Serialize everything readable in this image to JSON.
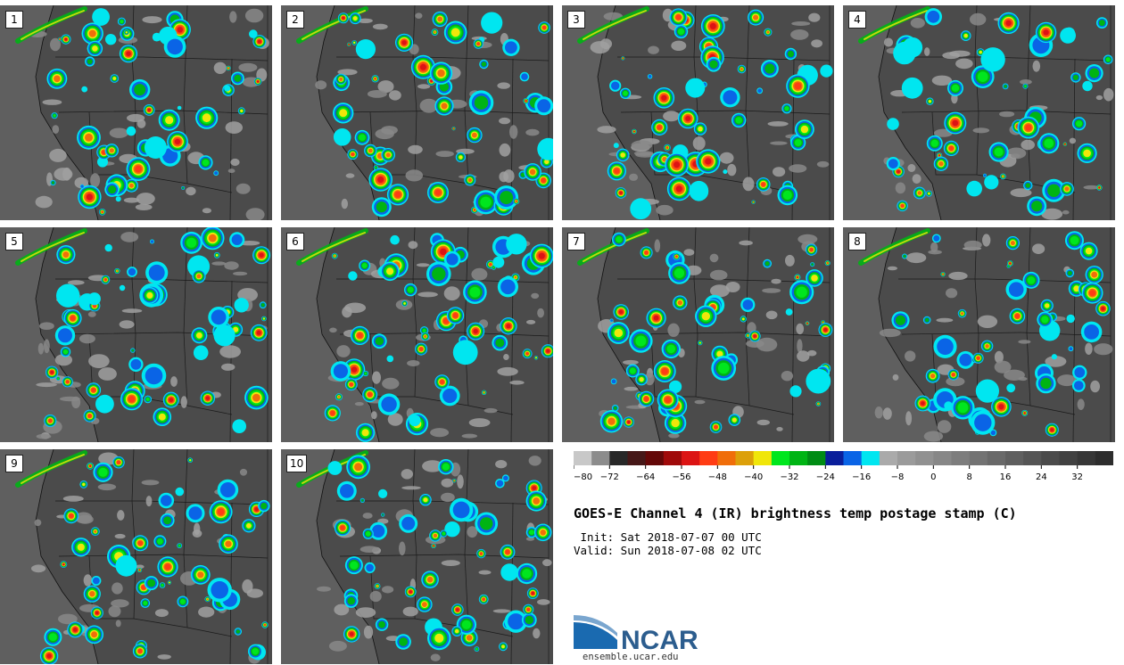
{
  "panels": [
    {
      "label": "1"
    },
    {
      "label": "2"
    },
    {
      "label": "3"
    },
    {
      "label": "4"
    },
    {
      "label": "5"
    },
    {
      "label": "6"
    },
    {
      "label": "7"
    },
    {
      "label": "8"
    },
    {
      "label": "9"
    },
    {
      "label": "10"
    }
  ],
  "colorbar": {
    "colors": [
      "#c8c8c8",
      "#8c8c8c",
      "#282828",
      "#461818",
      "#640808",
      "#a00a0a",
      "#dc1414",
      "#ff3c14",
      "#f06e0a",
      "#dca00a",
      "#f0e60a",
      "#00e61e",
      "#00b414",
      "#008c14",
      "#0a1e9b",
      "#0a64e6",
      "#00e6f0",
      "#aaaaaa",
      "#9b9b9b",
      "#919191",
      "#878787",
      "#7d7d7d",
      "#737373",
      "#696969",
      "#5f5f5f",
      "#555555",
      "#4b4b4b",
      "#414141",
      "#373737",
      "#2d2d2d"
    ],
    "tick_labels": [
      "−80",
      "−72",
      "−64",
      "−56",
      "−48",
      "−40",
      "−32",
      "−24",
      "−16",
      "−8",
      "0",
      "8",
      "16",
      "24",
      "32"
    ]
  },
  "title": "GOES-E Channel 4 (IR) brightness temp postage stamp (C)",
  "init_text": " Init: Sat 2018-07-07 00 UTC",
  "valid_text": "Valid: Sun 2018-07-08 02 UTC",
  "logo_text": "NCAR",
  "logo_url": "ensemble.ucar.edu"
}
